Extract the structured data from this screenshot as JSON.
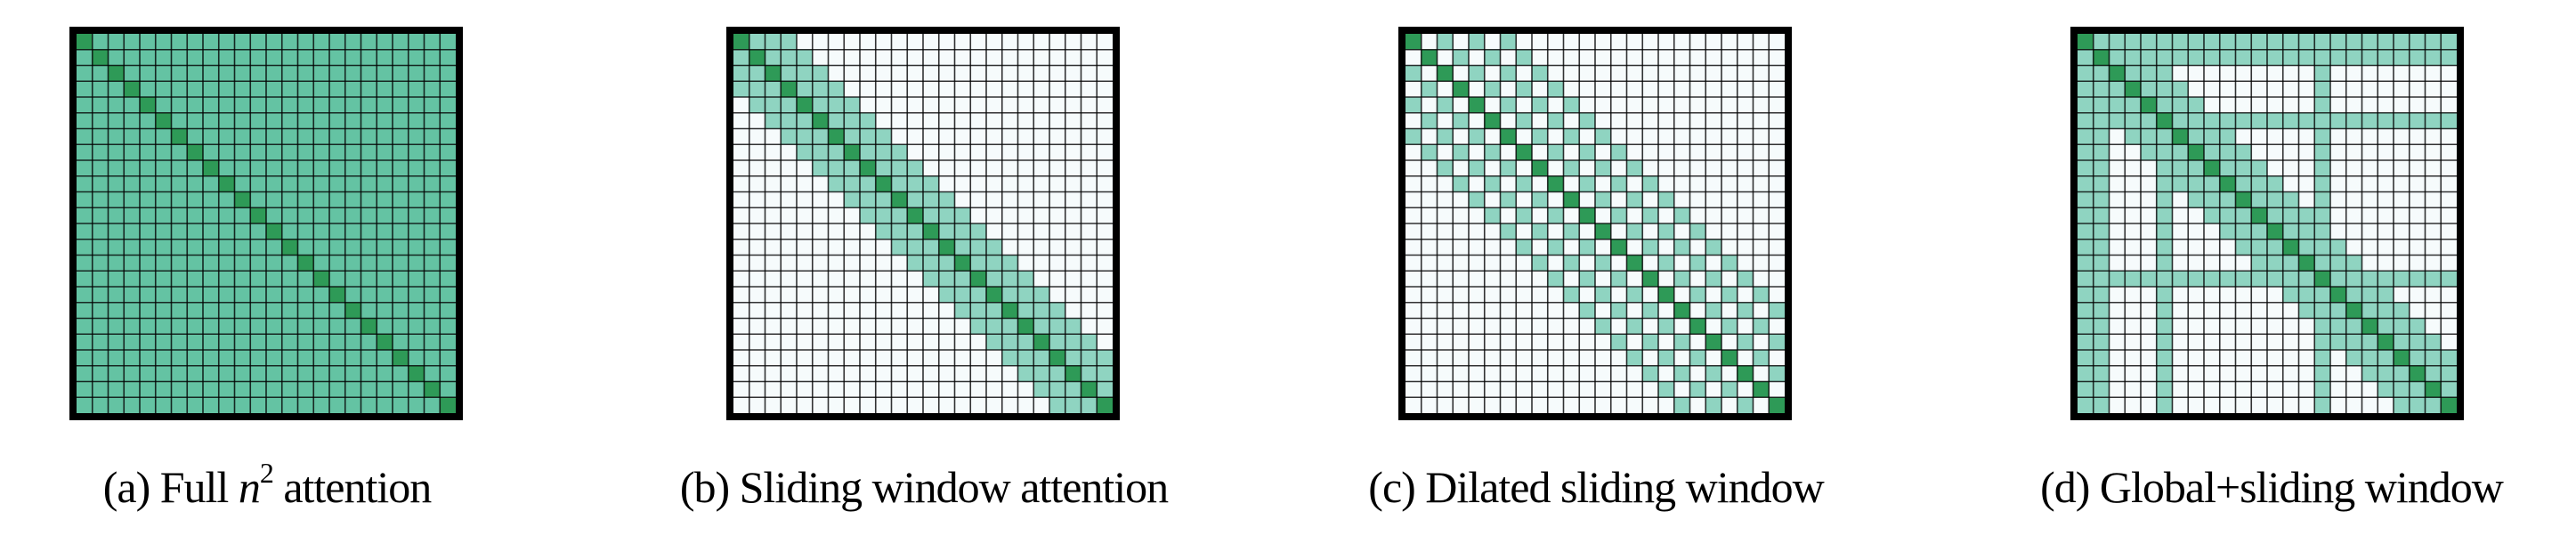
{
  "grid_size": 24,
  "colors": {
    "full": "#64c3a3",
    "attended": "#8fd4c1",
    "diagonal": "#2e9a57",
    "empty": "#f6fbfc",
    "grid_line": "#000000"
  },
  "panels": [
    {
      "id": "a",
      "pattern": "full",
      "caption_prefix": "(a) Full ",
      "caption_math": "n",
      "caption_sup": "2",
      "caption_suffix": " attention"
    },
    {
      "id": "b",
      "pattern": "sliding",
      "window": 3,
      "caption_prefix": "(b) Sliding window attention"
    },
    {
      "id": "c",
      "pattern": "dilated",
      "window": 6,
      "dilation": 2,
      "caption_prefix": "(c) Dilated sliding window"
    },
    {
      "id": "d",
      "pattern": "global_sliding",
      "window": 3,
      "global_tokens": [
        0,
        1,
        5,
        15
      ],
      "caption_prefix": "(d) Global+sliding window"
    }
  ]
}
